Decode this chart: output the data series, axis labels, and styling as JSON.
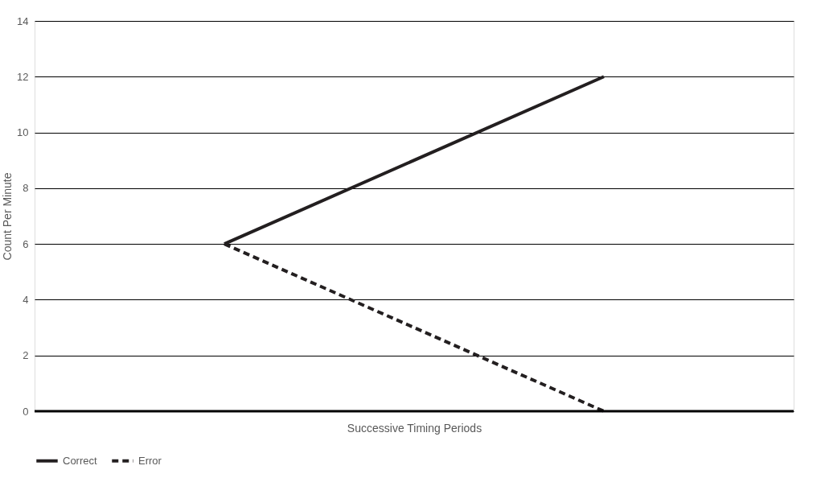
{
  "chart_data": {
    "type": "line",
    "xlabel": "Successive Timing Periods",
    "ylabel": "Count Per Minute",
    "categories": [
      null,
      null
    ],
    "series": [
      {
        "name": "Correct",
        "color": "#231f20",
        "line_style": "solid",
        "values": [
          6,
          12
        ]
      },
      {
        "name": "Error",
        "color": "#231f20",
        "line_style": "dashed",
        "values": [
          6,
          0
        ]
      }
    ],
    "ylim": [
      0,
      14
    ],
    "yticks": [
      0,
      2,
      4,
      6,
      8,
      10,
      12,
      14
    ],
    "grid": "y",
    "legend": "bottom",
    "tick_labels": "y",
    "marker": "none"
  }
}
